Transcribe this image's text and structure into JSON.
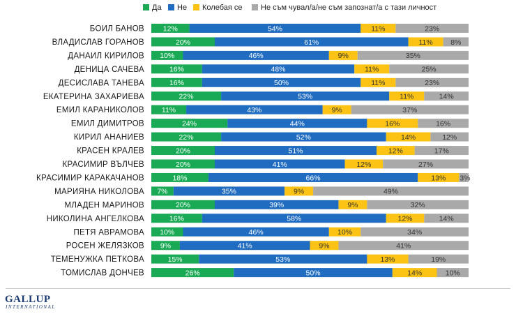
{
  "chart_data": {
    "type": "bar",
    "orientation": "horizontal",
    "stacked": true,
    "legend_position": "top-right",
    "x_range": [
      0,
      100
    ],
    "categories": [
      "БОИЛ БАНОВ",
      "ВЛАДИСЛАВ ГОРАНОВ",
      "ДАНАИЛ КИРИЛОВ",
      "ДЕНИЦА САЧЕВА",
      "ДЕСИСЛАВА ТАНЕВА",
      "ЕКАТЕРИНА ЗАХАРИЕВА",
      "ЕМИЛ КАРАНИКОЛОВ",
      "ЕМИЛ ДИМИТРОВ",
      "КИРИЛ АНАНИЕВ",
      "КРАСЕН КРАЛЕВ",
      "КРАСИМИР ВЪЛЧЕВ",
      "КРАСИМИР КАРАКАЧАНОВ",
      "МАРИЯНА НИКОЛОВА",
      "МЛАДЕН МАРИНОВ",
      "НИКОЛИНА АНГЕЛКОВА",
      "ПЕТЯ АВРАМОВА",
      "РОСЕН ЖЕЛЯЗКОВ",
      "ТЕМЕНУЖКА ПЕТКОВА",
      "ТОМИСЛАВ ДОНЧЕВ"
    ],
    "series": [
      {
        "name": "Да",
        "color": "#1aaa55",
        "values": [
          12,
          20,
          10,
          16,
          16,
          22,
          11,
          24,
          22,
          20,
          20,
          18,
          7,
          20,
          16,
          10,
          9,
          15,
          26
        ]
      },
      {
        "name": "Не",
        "color": "#1f6cc1",
        "values": [
          54,
          61,
          46,
          48,
          50,
          53,
          43,
          44,
          52,
          51,
          41,
          66,
          35,
          39,
          58,
          46,
          41,
          53,
          50
        ]
      },
      {
        "name": "Колебая се",
        "color": "#fcc314",
        "values": [
          11,
          11,
          9,
          11,
          11,
          11,
          9,
          16,
          14,
          12,
          12,
          13,
          9,
          9,
          12,
          10,
          9,
          13,
          14
        ]
      },
      {
        "name": "Не съм чувал/а/не съм запознат/а с тази личност",
        "color": "#a9a9a9",
        "values": [
          23,
          8,
          35,
          25,
          23,
          14,
          37,
          16,
          12,
          17,
          27,
          3,
          49,
          32,
          14,
          34,
          41,
          19,
          10
        ]
      }
    ],
    "value_suffix": "%"
  },
  "brand": {
    "logo_main": "GALLUP",
    "logo_sub": "INTERNATIONAL"
  }
}
